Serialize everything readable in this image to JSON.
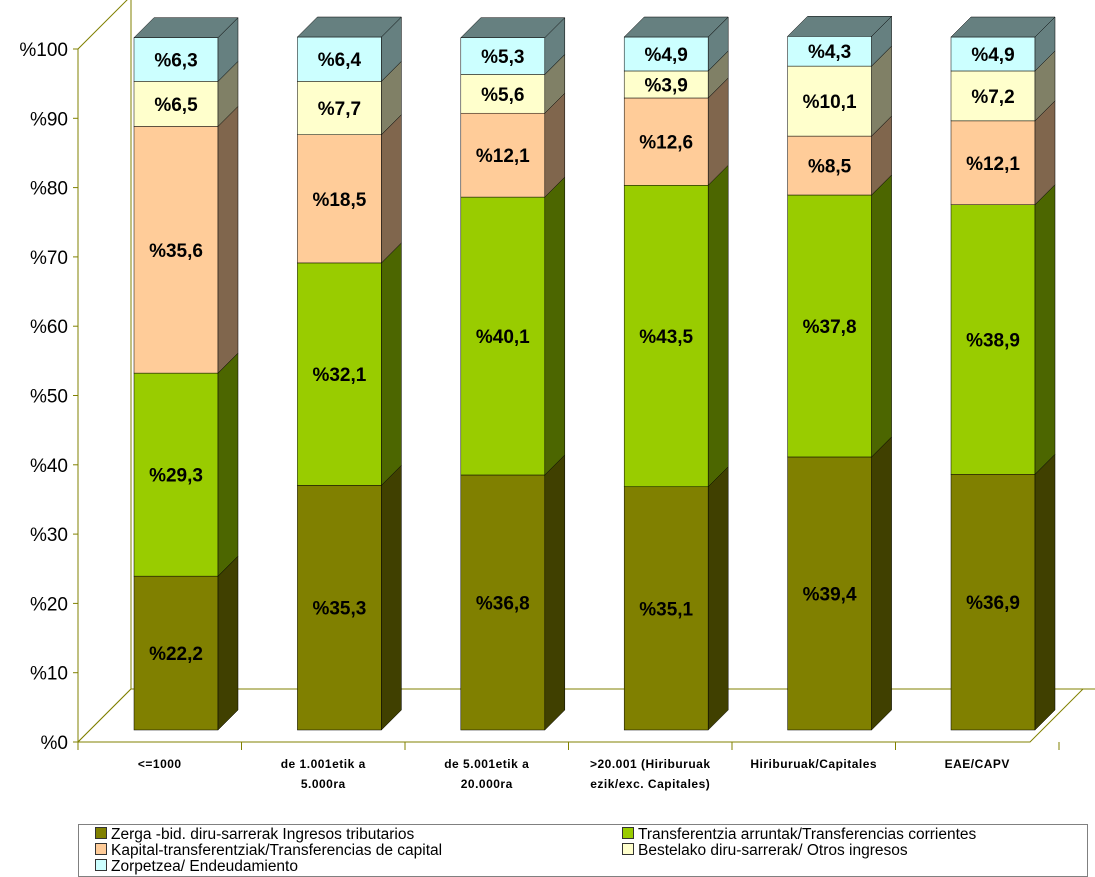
{
  "chart_data": {
    "type": "bar",
    "stacked": true,
    "percent": true,
    "categories": [
      [
        "<=1000"
      ],
      [
        "de 1.001etik a",
        "5.000ra"
      ],
      [
        "de 5.001etik a",
        "20.000ra"
      ],
      [
        ">20.001 (Hiriburuak",
        "ezik/exc. Capitales)"
      ],
      [
        "Hiriburuak/Capitales"
      ],
      [
        "EAE/CAPV"
      ]
    ],
    "y_ticks": [
      "%0",
      "%10",
      "%20",
      "%30",
      "%40",
      "%50",
      "%60",
      "%70",
      "%80",
      "%90",
      "%100"
    ],
    "ylim": [
      0,
      100
    ],
    "series": [
      {
        "name": "Zerga -bid. diru-sarrerak Ingresos tributarios",
        "color": "#808000",
        "side": "#404000",
        "values": [
          22.2,
          35.3,
          36.8,
          35.1,
          39.4,
          36.9
        ],
        "labels": [
          "%22,2",
          "%35,3",
          "%36,8",
          "%35,1",
          "%39,4",
          "%36,9"
        ]
      },
      {
        "name": "Transferentzia arruntak/Transferencias corrientes",
        "color": "#99cc00",
        "side": "#4c6600",
        "values": [
          29.3,
          32.1,
          40.1,
          43.5,
          37.8,
          38.9
        ],
        "labels": [
          "%29,3",
          "%32,1",
          "%40,1",
          "%43,5",
          "%37,8",
          "%38,9"
        ]
      },
      {
        "name": "Kapital-transferentziak/Transferencias de capital",
        "color": "#ffcc99",
        "side": "#80664d",
        "values": [
          35.6,
          18.5,
          12.1,
          12.6,
          8.5,
          12.1
        ],
        "labels": [
          "%35,6",
          "%18,5",
          "%12,1",
          "%12,6",
          "%8,5",
          "%12,1"
        ]
      },
      {
        "name": "Bestelako diru-sarrerak/ Otros ingresos",
        "color": "#ffffcc",
        "side": "#808066",
        "values": [
          6.5,
          7.7,
          5.6,
          3.9,
          10.1,
          7.2
        ],
        "labels": [
          "%6,5",
          "%7,7",
          "%5,6",
          "%3,9",
          "%10,1",
          "%7,2"
        ]
      },
      {
        "name": "Zorpetzea/ Endeudamiento",
        "color": "#ccffff",
        "side": "#668080",
        "values": [
          6.3,
          6.4,
          5.3,
          4.9,
          4.3,
          4.9
        ],
        "labels": [
          "%6,3",
          "%6,4",
          "%5,3",
          "%4,9",
          "%4,3",
          "%4,9"
        ]
      }
    ],
    "legend_position": "bottom",
    "grid": false
  }
}
